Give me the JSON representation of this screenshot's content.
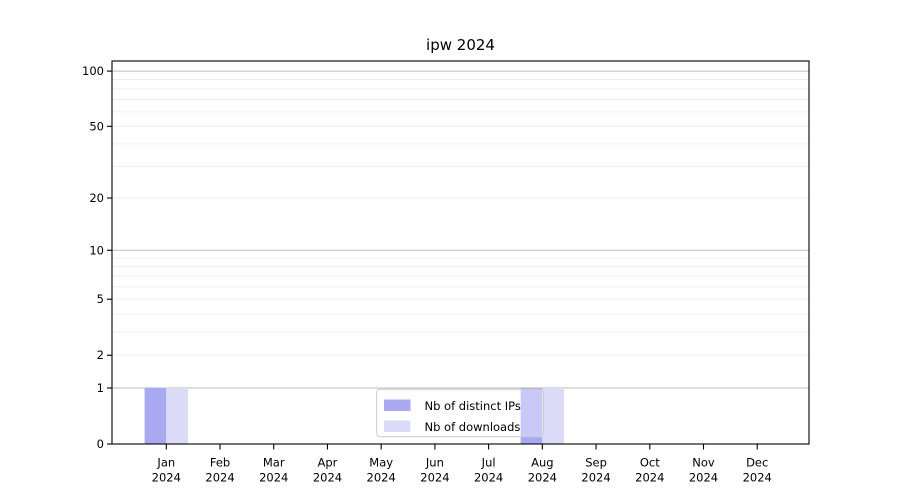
{
  "figure": {
    "title": "ipw 2024"
  },
  "chart_data": {
    "type": "bar",
    "title": "ipw 2024",
    "categories": [
      "Jan",
      "Feb",
      "Mar",
      "Apr",
      "May",
      "Jun",
      "Jul",
      "Aug",
      "Sep",
      "Oct",
      "Nov",
      "Dec"
    ],
    "x_year_label": "2024",
    "series": [
      {
        "name": "Nb of distinct IPs",
        "color": "#a9a9f2",
        "values": [
          1,
          0,
          0,
          0,
          0,
          0,
          0,
          1,
          0,
          0,
          0,
          0
        ]
      },
      {
        "name": "Nb of downloads",
        "color": "#dcdcf8",
        "values": [
          1,
          0,
          0,
          0,
          0,
          0,
          0,
          1,
          0,
          0,
          0,
          0
        ]
      }
    ],
    "xlabel": "",
    "ylabel": "",
    "y_axis": {
      "scale": "log1p",
      "tick_values": [
        0,
        1,
        2,
        5,
        10,
        20,
        50,
        100
      ],
      "major_grid_values": [
        1,
        10,
        100
      ],
      "minor_grid_values": [
        2,
        3,
        4,
        5,
        6,
        7,
        8,
        9,
        20,
        30,
        40,
        50,
        60,
        70,
        80,
        90
      ],
      "range": [
        0,
        115
      ]
    },
    "legend": {
      "position": "lower center",
      "entries": [
        "Nb of distinct IPs",
        "Nb of downloads"
      ]
    },
    "grid": "horizontal",
    "colors": {
      "background": "#ffffff",
      "spine": "#000000",
      "major_grid": "#bcbcbc",
      "minor_grid": "#ececec",
      "legend_border": "#cccccc",
      "text": "#000000"
    }
  }
}
